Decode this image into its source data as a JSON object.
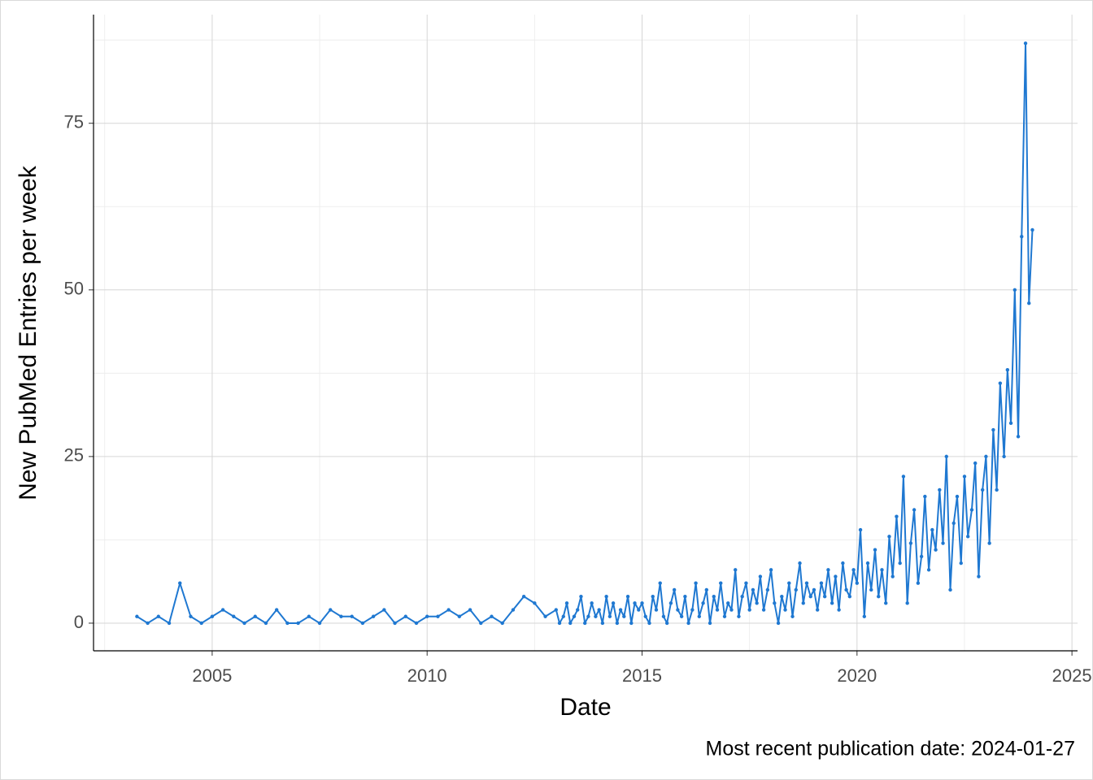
{
  "chart_data": {
    "type": "line",
    "x_label": "Date",
    "y_label": "New PubMed Entries per week",
    "caption": "Most recent publication date: 2024-01-27",
    "xlim": [
      2002.24,
      2025.13
    ],
    "ylim": [
      -4.15,
      91.3
    ],
    "xticks": [
      2005,
      2010,
      2015,
      2020,
      2025
    ],
    "yticks": [
      0,
      25,
      50,
      75
    ],
    "x_minor_grid": [
      2002.5,
      2007.5,
      2012.5,
      2017.5,
      2022.5
    ],
    "y_minor_grid": [
      12.5,
      37.5,
      62.5,
      87.5
    ],
    "grid": true,
    "x": [
      2003.25,
      2003.5,
      2003.75,
      2004.0,
      2004.25,
      2004.5,
      2004.75,
      2005.0,
      2005.25,
      2005.5,
      2005.75,
      2006.0,
      2006.25,
      2006.5,
      2006.75,
      2007.0,
      2007.25,
      2007.5,
      2007.75,
      2008.0,
      2008.25,
      2008.5,
      2008.75,
      2009.0,
      2009.25,
      2009.5,
      2009.75,
      2010.0,
      2010.25,
      2010.5,
      2010.75,
      2011.0,
      2011.25,
      2011.5,
      2011.75,
      2012.0,
      2012.25,
      2012.5,
      2012.75,
      2013.0,
      2013.08,
      2013.17,
      2013.25,
      2013.33,
      2013.42,
      2013.5,
      2013.58,
      2013.67,
      2013.75,
      2013.83,
      2013.92,
      2014.0,
      2014.08,
      2014.17,
      2014.25,
      2014.33,
      2014.42,
      2014.5,
      2014.58,
      2014.67,
      2014.75,
      2014.83,
      2014.92,
      2015.0,
      2015.08,
      2015.17,
      2015.25,
      2015.33,
      2015.42,
      2015.5,
      2015.58,
      2015.67,
      2015.75,
      2015.83,
      2015.92,
      2016.0,
      2016.08,
      2016.17,
      2016.25,
      2016.33,
      2016.42,
      2016.5,
      2016.58,
      2016.67,
      2016.75,
      2016.83,
      2016.92,
      2017.0,
      2017.08,
      2017.17,
      2017.25,
      2017.33,
      2017.42,
      2017.5,
      2017.58,
      2017.67,
      2017.75,
      2017.83,
      2017.92,
      2018.0,
      2018.08,
      2018.17,
      2018.25,
      2018.33,
      2018.42,
      2018.5,
      2018.58,
      2018.67,
      2018.75,
      2018.83,
      2018.92,
      2019.0,
      2019.08,
      2019.17,
      2019.25,
      2019.33,
      2019.42,
      2019.5,
      2019.58,
      2019.67,
      2019.75,
      2019.83,
      2019.92,
      2020.0,
      2020.08,
      2020.17,
      2020.25,
      2020.33,
      2020.42,
      2020.5,
      2020.58,
      2020.67,
      2020.75,
      2020.83,
      2020.92,
      2021.0,
      2021.08,
      2021.17,
      2021.25,
      2021.33,
      2021.42,
      2021.5,
      2021.58,
      2021.67,
      2021.75,
      2021.83,
      2021.92,
      2022.0,
      2022.08,
      2022.17,
      2022.25,
      2022.33,
      2022.42,
      2022.5,
      2022.58,
      2022.67,
      2022.75,
      2022.83,
      2022.92,
      2023.0,
      2023.08,
      2023.17,
      2023.25,
      2023.33,
      2023.42,
      2023.5,
      2023.58,
      2023.67,
      2023.75,
      2023.83,
      2023.92,
      2024.0,
      2024.08
    ],
    "series": [
      {
        "color": "#1f78d1",
        "values": [
          1,
          0,
          1,
          0,
          6,
          1,
          0,
          1,
          2,
          1,
          0,
          1,
          0,
          2,
          0,
          0,
          1,
          0,
          2,
          1,
          1,
          0,
          1,
          2,
          0,
          1,
          0,
          1,
          1,
          2,
          1,
          2,
          0,
          1,
          0,
          2,
          4,
          3,
          1,
          2,
          0,
          1,
          3,
          0,
          1,
          2,
          4,
          0,
          1,
          3,
          1,
          2,
          0,
          4,
          1,
          3,
          0,
          2,
          1,
          4,
          0,
          3,
          2,
          3,
          1,
          0,
          4,
          2,
          6,
          1,
          0,
          3,
          5,
          2,
          1,
          4,
          0,
          2,
          6,
          1,
          3,
          5,
          0,
          4,
          2,
          6,
          1,
          3,
          2,
          8,
          1,
          4,
          6,
          2,
          5,
          3,
          7,
          2,
          5,
          8,
          3,
          0,
          4,
          2,
          6,
          1,
          5,
          9,
          3,
          6,
          4,
          5,
          2,
          6,
          4,
          8,
          3,
          7,
          2,
          9,
          5,
          4,
          8,
          6,
          14,
          1,
          9,
          5,
          11,
          4,
          8,
          3,
          13,
          7,
          16,
          9,
          22,
          3,
          12,
          17,
          6,
          10,
          19,
          8,
          14,
          11,
          20,
          12,
          25,
          5,
          15,
          19,
          9,
          22,
          13,
          17,
          24,
          7,
          20,
          25,
          12,
          29,
          20,
          36,
          25,
          38,
          30,
          50,
          28,
          58,
          87,
          48,
          59
        ]
      }
    ]
  }
}
